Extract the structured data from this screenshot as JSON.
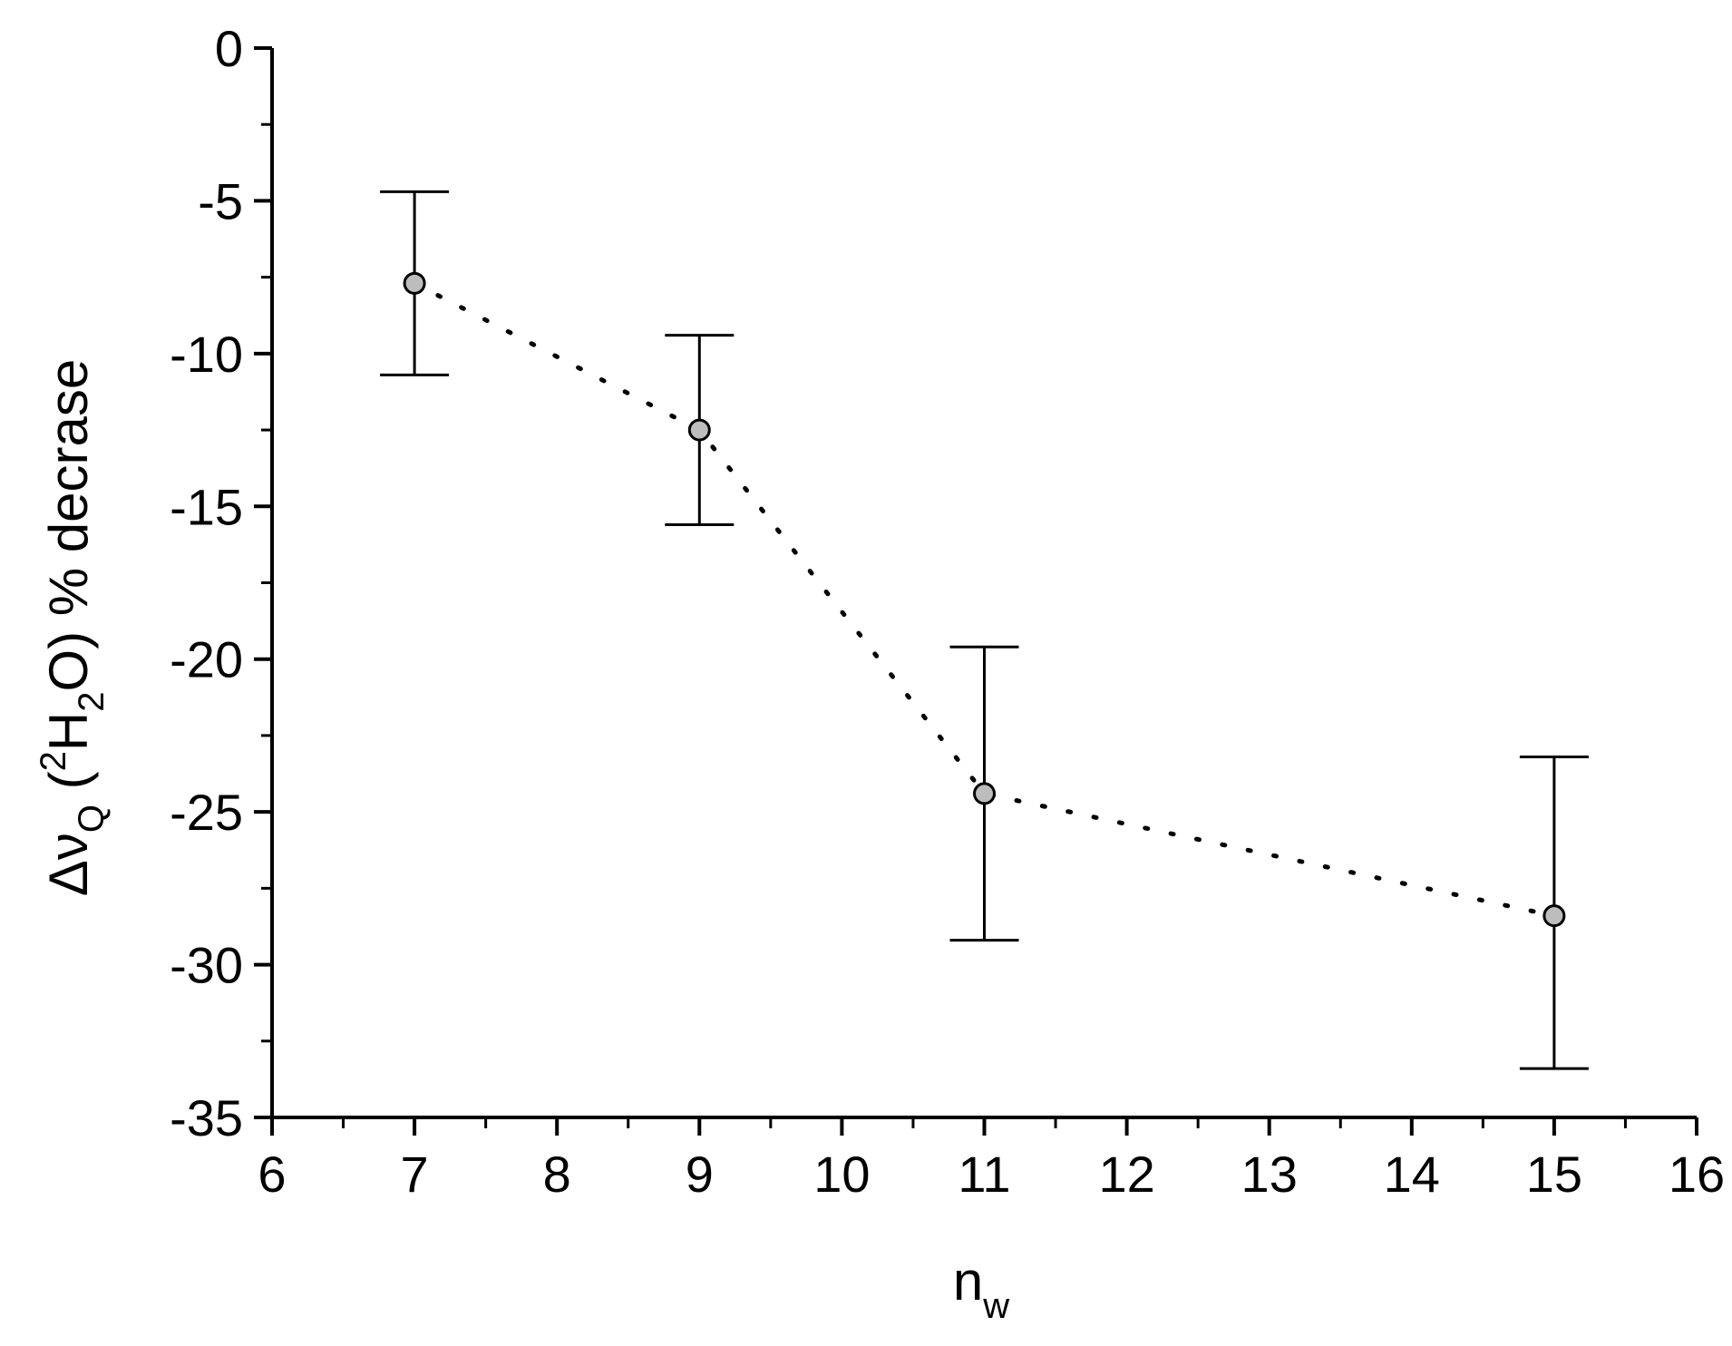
{
  "chart_data": {
    "type": "scatter",
    "xlabel": "n",
    "xlabel_sub": "w",
    "ylabel_parts": {
      "delta_nu": "Δν",
      "delta_nu_sub": "Q",
      "open": " (",
      "iso_sup": "2",
      "h": "H",
      "h_sub": "2",
      "rest": "O) % decrase"
    },
    "xlim": [
      6,
      16
    ],
    "ylim": [
      -35,
      0
    ],
    "xticks": [
      6,
      7,
      8,
      9,
      10,
      11,
      12,
      13,
      14,
      15,
      16
    ],
    "yticks": [
      0,
      -5,
      -10,
      -15,
      -20,
      -25,
      -30,
      -35
    ],
    "grid": false,
    "series": [
      {
        "line_style": "dotted",
        "marker": "circle",
        "x": [
          7,
          9,
          11,
          15
        ],
        "y": [
          -7.7,
          -12.5,
          -24.4,
          -28.4
        ],
        "yerr_upper": [
          -4.7,
          -9.4,
          -19.6,
          -23.2
        ],
        "yerr_lower": [
          -10.7,
          -15.6,
          -29.2,
          -33.4
        ]
      }
    ]
  }
}
